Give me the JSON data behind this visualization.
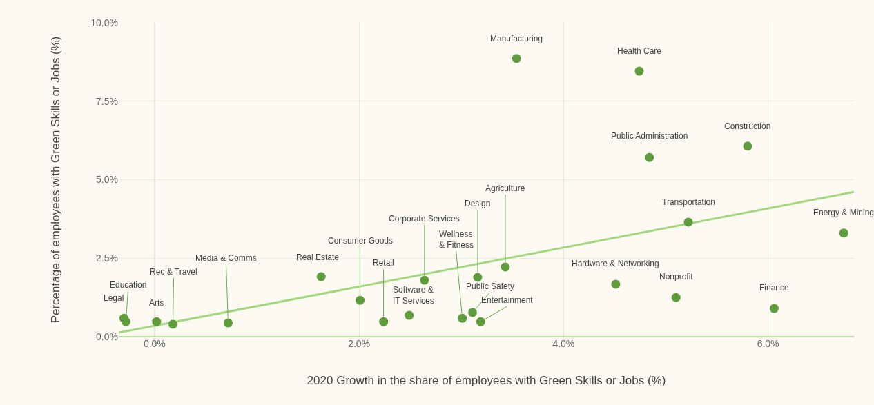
{
  "chart_data": {
    "type": "scatter",
    "xlabel": "2020 Growth in the share of employees with Green Skills or Jobs (%)",
    "ylabel": "Percentage of employees with Green Skills or Jobs (%)",
    "xlim": [
      -0.35,
      6.84
    ],
    "ylim": [
      0,
      10
    ],
    "xticks": [
      {
        "value": 0,
        "label": "0.0%"
      },
      {
        "value": 2,
        "label": "2.0%"
      },
      {
        "value": 4,
        "label": "4.0%"
      },
      {
        "value": 6,
        "label": "6.0%"
      }
    ],
    "yticks": [
      {
        "value": 0,
        "label": "0.0%"
      },
      {
        "value": 2.5,
        "label": "2.5%"
      },
      {
        "value": 5,
        "label": "5.0%"
      },
      {
        "value": 7.5,
        "label": "7.5%"
      },
      {
        "value": 10,
        "label": "10.0%"
      }
    ],
    "grid": true,
    "marker": "circle",
    "ref_lines": [
      {
        "axis": "x",
        "value": 0,
        "color": "#8a8a8a"
      }
    ],
    "series": [
      {
        "color": "#5e9c3c",
        "x": [
          3.54,
          4.74,
          5.8,
          4.84,
          5.22,
          6.74,
          3.43,
          3.16,
          2.64,
          4.51,
          5.1,
          6.06,
          1.63,
          2.01,
          2.24,
          2.49,
          3.01,
          3.11,
          3.19,
          0.72,
          0.18,
          0.02,
          -0.3,
          -0.28
        ],
        "values": [
          8.86,
          8.46,
          6.07,
          5.71,
          3.65,
          3.3,
          2.22,
          1.89,
          1.8,
          1.67,
          1.25,
          0.9,
          1.91,
          1.16,
          0.48,
          0.68,
          0.59,
          0.77,
          0.48,
          0.44,
          0.4,
          0.48,
          0.59,
          0.48
        ]
      },
      {
        "type": "line",
        "marker": "none",
        "color": "#a3d77f",
        "x": [
          -0.35,
          6.84
        ],
        "values": [
          0.13,
          4.61
        ]
      }
    ],
    "annotations": [
      {
        "text": "Manufacturing",
        "x": 3.54,
        "y": 8.86
      },
      {
        "text": "Health Care",
        "x": 4.74,
        "y": 8.46
      },
      {
        "text": "Construction",
        "x": 5.8,
        "y": 6.07
      },
      {
        "text": "Public Administration",
        "x": 4.84,
        "y": 5.71
      },
      {
        "text": "Transportation",
        "x": 5.22,
        "y": 3.65
      },
      {
        "text": "Energy & Mining",
        "x": 6.74,
        "y": 3.3
      },
      {
        "text": "Agriculture",
        "x": 3.43,
        "y": 2.22
      },
      {
        "text": "Design",
        "x": 3.16,
        "y": 1.89
      },
      {
        "text": "Corporate Services",
        "x": 2.64,
        "y": 1.8
      },
      {
        "text": "Hardware & Networking",
        "x": 4.51,
        "y": 1.67
      },
      {
        "text": "Nonprofit",
        "x": 5.1,
        "y": 1.25
      },
      {
        "text": "Finance",
        "x": 6.06,
        "y": 0.9
      },
      {
        "text": "Real Estate",
        "x": 1.63,
        "y": 1.91
      },
      {
        "text": "Consumer Goods",
        "x": 2.01,
        "y": 1.16
      },
      {
        "text": "Retail",
        "x": 2.24,
        "y": 0.48
      },
      {
        "text": "Software &\nIT Services",
        "x": 2.49,
        "y": 0.68
      },
      {
        "text": "Wellness\n& Fitness",
        "x": 3.01,
        "y": 0.59
      },
      {
        "text": "Public Safety",
        "x": 3.11,
        "y": 0.77
      },
      {
        "text": "Entertainment",
        "x": 3.19,
        "y": 0.48
      },
      {
        "text": "Media & Comms",
        "x": 0.72,
        "y": 0.44
      },
      {
        "text": "Rec & Travel",
        "x": 0.18,
        "y": 0.4
      },
      {
        "text": "Arts",
        "x": 0.02,
        "y": 0.48
      },
      {
        "text": "Legal",
        "x": -0.3,
        "y": 0.59
      },
      {
        "text": "Education",
        "x": -0.28,
        "y": 0.48
      }
    ]
  }
}
